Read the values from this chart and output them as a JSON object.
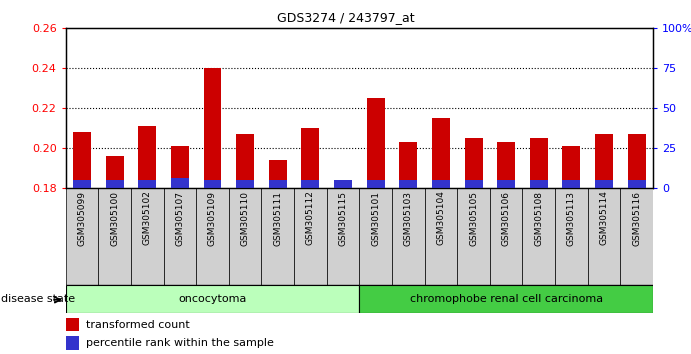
{
  "title": "GDS3274 / 243797_at",
  "samples": [
    "GSM305099",
    "GSM305100",
    "GSM305102",
    "GSM305107",
    "GSM305109",
    "GSM305110",
    "GSM305111",
    "GSM305112",
    "GSM305115",
    "GSM305101",
    "GSM305103",
    "GSM305104",
    "GSM305105",
    "GSM305106",
    "GSM305108",
    "GSM305113",
    "GSM305114",
    "GSM305116"
  ],
  "transformed_count": [
    0.208,
    0.196,
    0.211,
    0.201,
    0.24,
    0.207,
    0.194,
    0.21,
    0.182,
    0.225,
    0.203,
    0.215,
    0.205,
    0.203,
    0.205,
    0.201,
    0.207,
    0.207
  ],
  "percentile_rank": [
    5,
    5,
    5,
    6,
    5,
    5,
    5,
    5,
    5,
    5,
    5,
    5,
    5,
    5,
    5,
    5,
    5,
    5
  ],
  "base": 0.18,
  "ylim_left": [
    0.18,
    0.26
  ],
  "ylim_right": [
    0,
    100
  ],
  "yticks_left": [
    0.18,
    0.2,
    0.22,
    0.24,
    0.26
  ],
  "yticks_right": [
    0,
    25,
    50,
    75,
    100
  ],
  "ytick_labels_right": [
    "0",
    "25",
    "50",
    "75",
    "100%"
  ],
  "bar_color_red": "#cc0000",
  "bar_color_blue": "#3333cc",
  "oncocytoma_count": 9,
  "chromophobe_count": 9,
  "group1_label": "oncocytoma",
  "group2_label": "chromophobe renal cell carcinoma",
  "group1_color": "#bbffbb",
  "group2_color": "#44cc44",
  "disease_state_label": "disease state",
  "legend1": "transformed count",
  "legend2": "percentile rank within the sample",
  "bar_width": 0.55,
  "xtick_bg": "#d0d0d0"
}
